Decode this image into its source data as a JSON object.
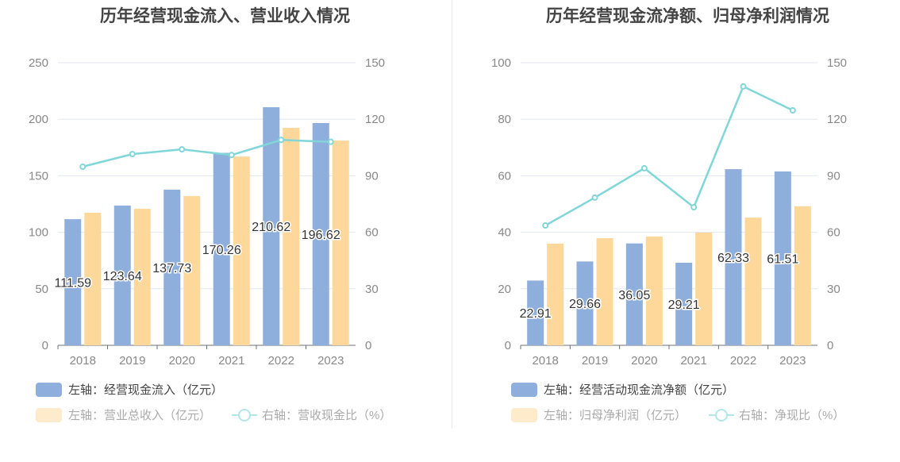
{
  "colors": {
    "bar1": "#8eaedb",
    "bar2": "#fdd89a",
    "line": "#80d6d8",
    "grid": "#e0e6f1",
    "axisText": "#888"
  },
  "chart_data": [
    {
      "type": "bar+line",
      "title": "历年经营现金流入、营业收入情况",
      "categories": [
        "2018",
        "2019",
        "2020",
        "2021",
        "2022",
        "2023"
      ],
      "left_axis": {
        "range": [
          0,
          250
        ],
        "ticks": [
          "0",
          "50",
          "100",
          "150",
          "200",
          "250"
        ]
      },
      "right_axis": {
        "range": [
          0,
          150
        ],
        "ticks": [
          "0",
          "30",
          "60",
          "90",
          "120",
          "150"
        ]
      },
      "grid": true,
      "legend_placement": "bottom-left",
      "series": [
        {
          "name": "左轴：经营现金流入（亿元）",
          "type": "bar",
          "axis": "left",
          "values": [
            111.59,
            123.64,
            137.73,
            170.26,
            210.62,
            196.62
          ],
          "labels": [
            "111.59",
            "123.64",
            "137.73",
            "170.26",
            "210.62",
            "196.62"
          ]
        },
        {
          "name": "左轴：营业总收入（亿元）",
          "type": "bar",
          "axis": "left",
          "values": [
            117.3,
            120.8,
            132.0,
            167.0,
            192.4,
            181.2
          ]
        },
        {
          "name": "右轴：营收现金比（%）",
          "type": "line",
          "axis": "right",
          "values": [
            94.8,
            101.5,
            104.0,
            101.0,
            109.0,
            108.0
          ]
        }
      ]
    },
    {
      "type": "bar+line",
      "title": "历年经营现金流净额、归母净利润情况",
      "categories": [
        "2018",
        "2019",
        "2020",
        "2021",
        "2022",
        "2023"
      ],
      "left_axis": {
        "range": [
          0,
          100
        ],
        "ticks": [
          "0",
          "20",
          "40",
          "60",
          "80",
          "100"
        ]
      },
      "right_axis": {
        "range": [
          0,
          150
        ],
        "ticks": [
          "0",
          "30",
          "60",
          "90",
          "120",
          "150"
        ]
      },
      "grid": true,
      "legend_placement": "bottom-left",
      "series": [
        {
          "name": "左轴：经营活动现金流净额（亿元）",
          "type": "bar",
          "axis": "left",
          "values": [
            22.91,
            29.66,
            36.05,
            29.21,
            62.33,
            61.51
          ],
          "labels": [
            "22.91",
            "29.66",
            "36.05",
            "29.21",
            "62.33",
            "61.51"
          ]
        },
        {
          "name": "左轴：归母净利润（亿元）",
          "type": "bar",
          "axis": "left",
          "values": [
            36.0,
            37.9,
            38.5,
            39.9,
            45.2,
            49.2
          ]
        },
        {
          "name": "右轴：净现比（%）",
          "type": "line",
          "axis": "right",
          "values": [
            63.6,
            78.4,
            94.0,
            73.3,
            137.4,
            124.7
          ]
        }
      ]
    }
  ]
}
